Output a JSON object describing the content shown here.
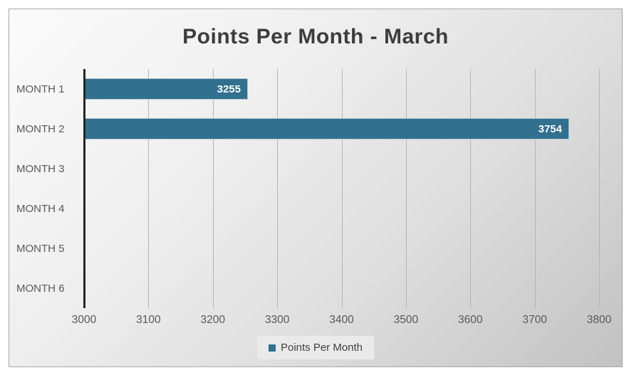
{
  "chart_data": {
    "type": "bar",
    "orientation": "horizontal",
    "title": "Points Per Month - March",
    "categories": [
      "MONTH 1",
      "MONTH 2",
      "MONTH 3",
      "MONTH 4",
      "MONTH 5",
      "MONTH 6"
    ],
    "series": [
      {
        "name": "Points Per Month",
        "values": [
          3255,
          3754,
          null,
          null,
          null,
          null
        ]
      }
    ],
    "data_labels_shown": true,
    "xlim": [
      3000,
      3800
    ],
    "x_ticks": [
      "3000",
      "3100",
      "3200",
      "3300",
      "3400",
      "3500",
      "3600",
      "3700",
      "3800"
    ],
    "grid": true,
    "legend_position": "bottom"
  },
  "legend": {
    "label": "Points Per Month"
  },
  "colors": {
    "bar": "#31708F",
    "axis_line": "#262626",
    "gridline": "#b5b5b5",
    "title_text": "#3d3d3d",
    "axis_text": "#595959",
    "bar_value_text": "#ffffff",
    "legend_background": "#eaeaea",
    "panel_border": "#a6a6a6"
  }
}
